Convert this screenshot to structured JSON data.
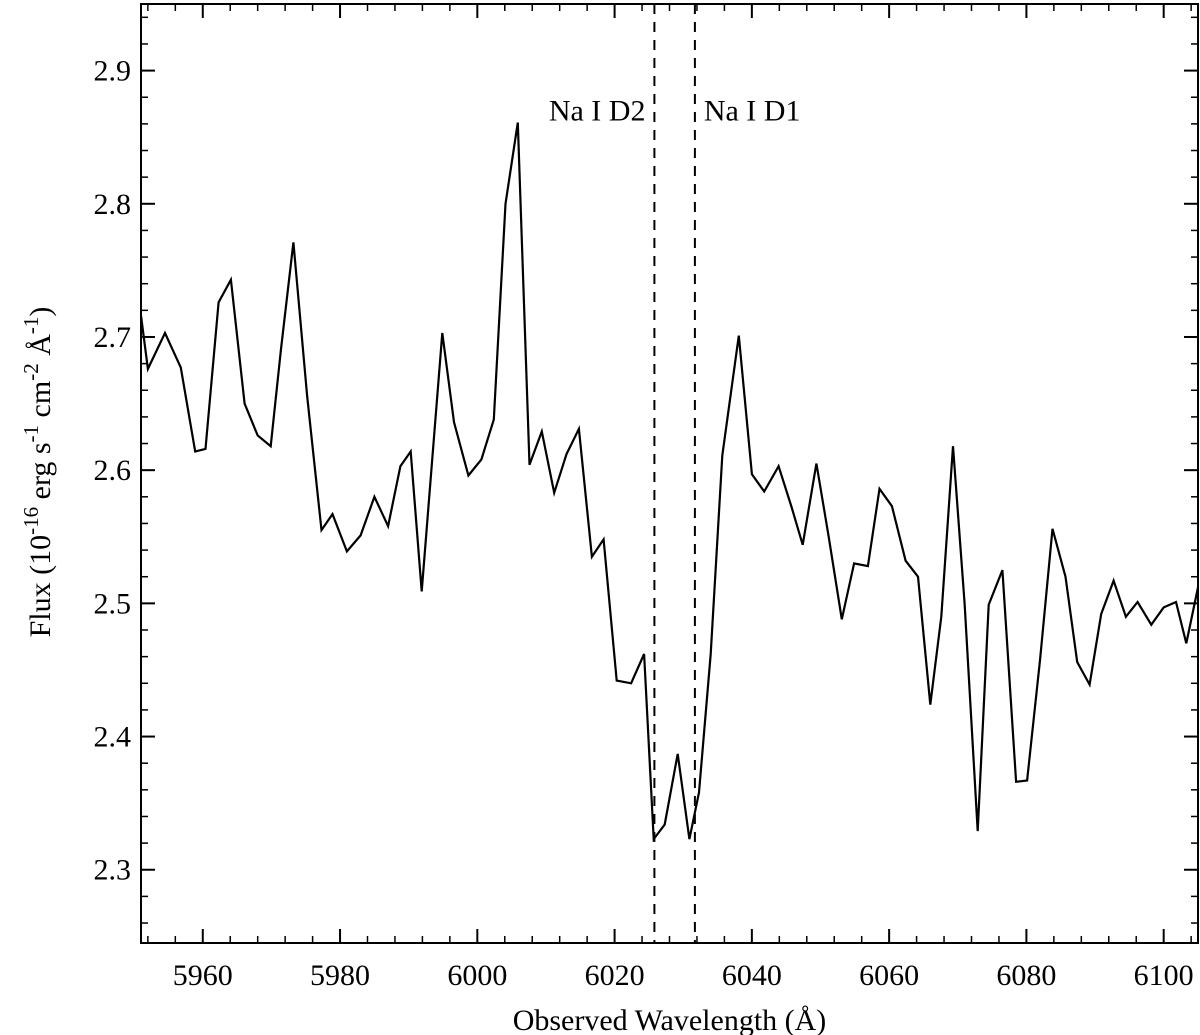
{
  "chart_data": {
    "type": "line",
    "xlabel": "Observed Wavelength (Å)",
    "ylabel": {
      "prefix": "Flux (10",
      "exp1": "-16",
      "mid1": " erg s",
      "exp2": "-1",
      "mid2": " cm",
      "exp3": "-2",
      "mid3": " Å",
      "exp4": "-1",
      "suffix": ")"
    },
    "xlim": [
      5951,
      6105
    ],
    "ylim": [
      2.245,
      2.95
    ],
    "xticks": [
      5960,
      5980,
      6000,
      6020,
      6040,
      6060,
      6080,
      6100
    ],
    "yticks": [
      2.3,
      2.4,
      2.5,
      2.6,
      2.7,
      2.8,
      2.9
    ],
    "xtick_labels": [
      "5960",
      "5980",
      "6000",
      "6020",
      "6040",
      "6060",
      "6080",
      "6100"
    ],
    "ytick_labels": [
      "2.3",
      "2.4",
      "2.5",
      "2.6",
      "2.7",
      "2.8",
      "2.9"
    ],
    "x_minor_step": 4,
    "y_minor_step": 0.02,
    "grid": false,
    "series": [
      {
        "color": "#000000",
        "points": [
          [
            5951.0,
            2.716
          ],
          [
            5952.0,
            2.676
          ],
          [
            5954.5,
            2.703
          ],
          [
            5956.8,
            2.677
          ],
          [
            5958.9,
            2.614
          ],
          [
            5960.4,
            2.616
          ],
          [
            5962.3,
            2.726
          ],
          [
            5964.1,
            2.743
          ],
          [
            5966.1,
            2.65
          ],
          [
            5968.0,
            2.626
          ],
          [
            5969.9,
            2.618
          ],
          [
            5971.4,
            2.691
          ],
          [
            5973.2,
            2.771
          ],
          [
            5975.2,
            2.656
          ],
          [
            5977.3,
            2.555
          ],
          [
            5978.9,
            2.567
          ],
          [
            5981.0,
            2.539
          ],
          [
            5983.0,
            2.551
          ],
          [
            5985.0,
            2.58
          ],
          [
            5987.0,
            2.558
          ],
          [
            5988.8,
            2.603
          ],
          [
            5990.3,
            2.614
          ],
          [
            5991.9,
            2.509
          ],
          [
            5994.9,
            2.703
          ],
          [
            5996.6,
            2.636
          ],
          [
            5998.7,
            2.596
          ],
          [
            6000.6,
            2.608
          ],
          [
            6002.4,
            2.638
          ],
          [
            6004.1,
            2.8
          ],
          [
            6005.9,
            2.861
          ],
          [
            6007.6,
            2.604
          ],
          [
            6009.4,
            2.629
          ],
          [
            6011.2,
            2.583
          ],
          [
            6013.0,
            2.612
          ],
          [
            6014.8,
            2.631
          ],
          [
            6016.7,
            2.535
          ],
          [
            6018.4,
            2.548
          ],
          [
            6020.3,
            2.442
          ],
          [
            6022.4,
            2.44
          ],
          [
            6024.3,
            2.462
          ],
          [
            6025.7,
            2.323
          ],
          [
            6027.3,
            2.334
          ],
          [
            6029.2,
            2.387
          ],
          [
            6030.9,
            2.323
          ],
          [
            6032.3,
            2.358
          ],
          [
            6034.0,
            2.462
          ],
          [
            6035.7,
            2.611
          ],
          [
            6038.1,
            2.701
          ],
          [
            6040.0,
            2.597
          ],
          [
            6041.8,
            2.584
          ],
          [
            6043.9,
            2.603
          ],
          [
            6045.8,
            2.572
          ],
          [
            6047.4,
            2.544
          ],
          [
            6049.4,
            2.605
          ],
          [
            6051.2,
            2.55
          ],
          [
            6053.1,
            2.488
          ],
          [
            6054.9,
            2.53
          ],
          [
            6056.9,
            2.528
          ],
          [
            6058.6,
            2.586
          ],
          [
            6060.4,
            2.573
          ],
          [
            6062.4,
            2.532
          ],
          [
            6064.2,
            2.52
          ],
          [
            6066.0,
            2.424
          ],
          [
            6067.6,
            2.49
          ],
          [
            6069.3,
            2.618
          ],
          [
            6071.0,
            2.5
          ],
          [
            6072.9,
            2.329
          ],
          [
            6074.5,
            2.499
          ],
          [
            6076.5,
            2.525
          ],
          [
            6078.5,
            2.366
          ],
          [
            6080.1,
            2.367
          ],
          [
            6082.0,
            2.458
          ],
          [
            6083.8,
            2.556
          ],
          [
            6085.7,
            2.52
          ],
          [
            6087.4,
            2.456
          ],
          [
            6089.2,
            2.439
          ],
          [
            6090.9,
            2.492
          ],
          [
            6092.7,
            2.517
          ],
          [
            6094.5,
            2.49
          ],
          [
            6096.2,
            2.501
          ],
          [
            6098.2,
            2.484
          ],
          [
            6100.0,
            2.497
          ],
          [
            6101.8,
            2.501
          ],
          [
            6103.3,
            2.47
          ],
          [
            6105.0,
            2.512
          ]
        ]
      }
    ],
    "vlines": [
      {
        "x": 6025.8,
        "style": "dashed"
      },
      {
        "x": 6031.7,
        "style": "dashed"
      }
    ],
    "annotations": [
      {
        "text": "Na I D2",
        "x": 6024.5,
        "y": 2.87,
        "anchor": "end"
      },
      {
        "text": "Na I D1",
        "x": 6033.0,
        "y": 2.87,
        "anchor": "start"
      }
    ]
  }
}
